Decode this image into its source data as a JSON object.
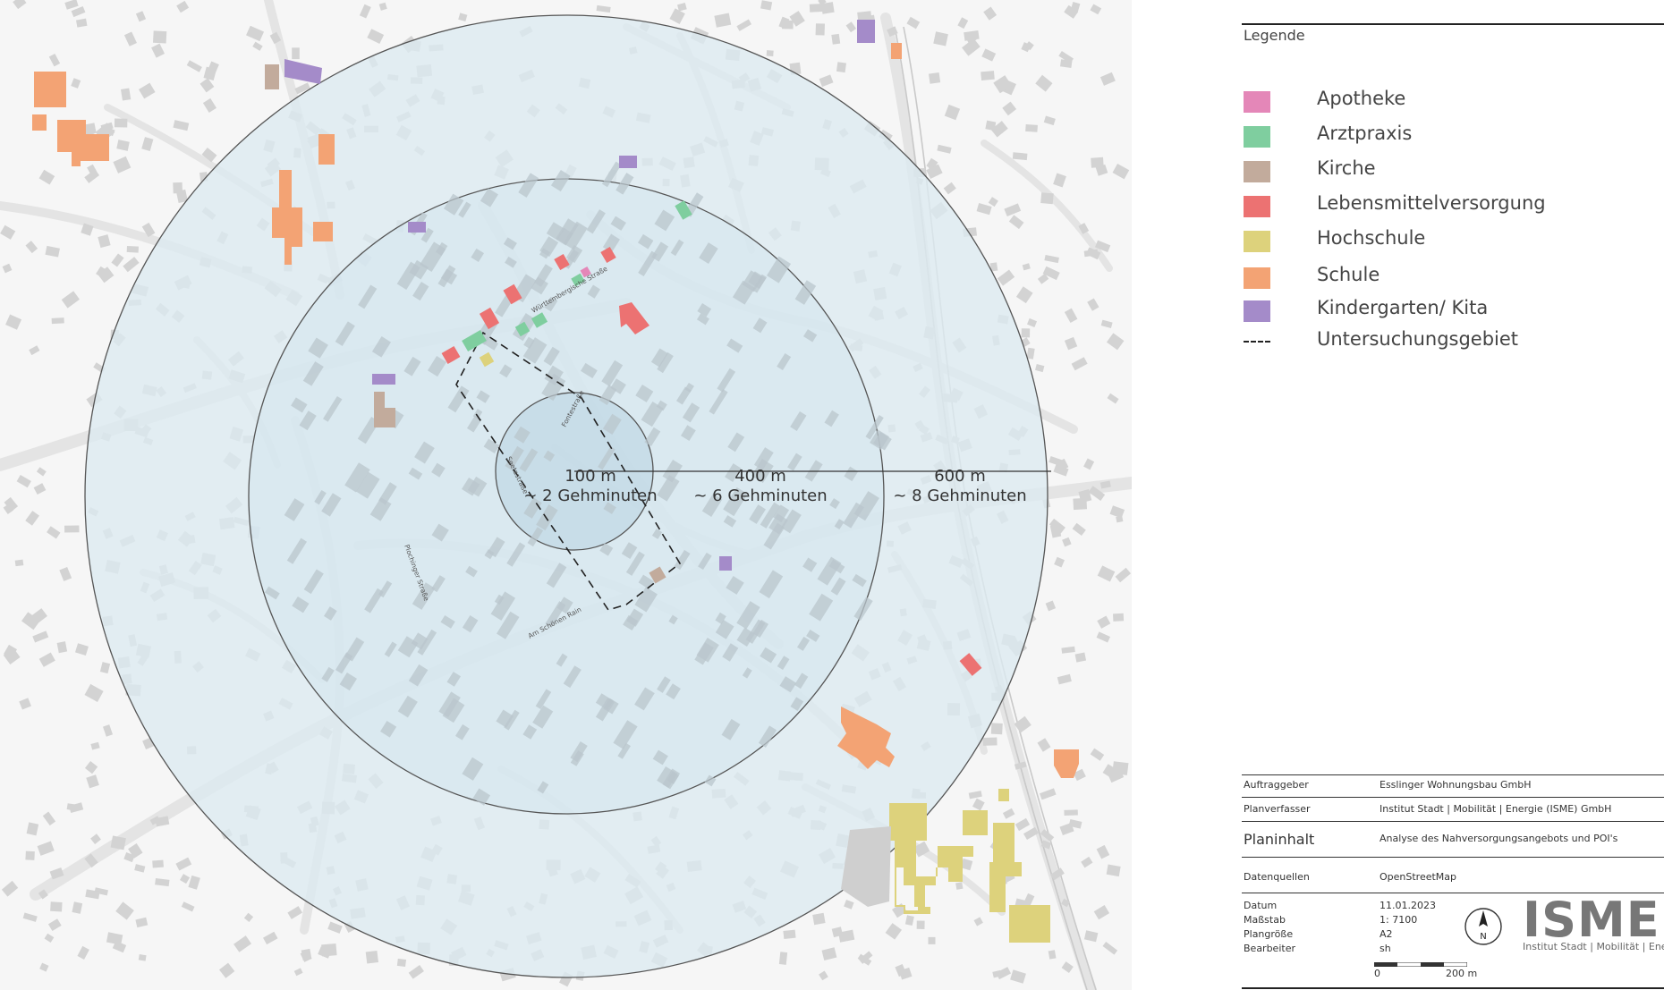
{
  "map": {
    "rings": [
      {
        "radius_m": "100 m",
        "walk": "~ 2 Gehminuten"
      },
      {
        "radius_m": "400 m",
        "walk": "~ 6 Gehminuten"
      },
      {
        "radius_m": "600 m",
        "walk": "~ 8 Gehminuten"
      }
    ],
    "street_labels": [
      "Württembergische Straße",
      "Am Schönen Rain",
      "Plochinger Straße",
      "Fontestraße",
      "Seetastraße"
    ]
  },
  "legend": {
    "title": "Legende",
    "items": [
      {
        "label": "Apotheke",
        "color": "#e487b8"
      },
      {
        "label": "Arztpraxis",
        "color": "#7fce9f"
      },
      {
        "label": "Kirche",
        "color": "#c2ab9c"
      },
      {
        "label": "Lebensmittelversorgung",
        "color": "#ec7272"
      },
      {
        "label": "Hochschule",
        "color": "#ddd27c"
      },
      {
        "label": "Schule",
        "color": "#f3a374"
      },
      {
        "label": "Kindergarten/ Kita",
        "color": "#a48bc9"
      }
    ],
    "study_area": "Untersuchungsgebiet"
  },
  "titleblock": {
    "auftraggeber_key": "Auftraggeber",
    "auftraggeber_val": "Esslinger Wohnungsbau GmbH",
    "planverfasser_key": "Planverfasser",
    "planverfasser_val": "Institut Stadt | Mobilität | Energie (ISME) GmbH",
    "planinhalt_key": "Planinhalt",
    "planinhalt_val": "Analyse des Nahversorgungsangebots und POI's",
    "datenquellen_key": "Datenquellen",
    "datenquellen_val": "OpenStreetMap",
    "datum_key": "Datum",
    "datum_val": "11.01.2023",
    "massstab_key": "Maßstab",
    "massstab_val": "1: 7100",
    "plangroesse_key": "Plangröße",
    "plangroesse_val": "A2",
    "bearbeiter_key": "Bearbeiter",
    "bearbeiter_val": "sh",
    "scale_start": "0",
    "scale_end": "200 m",
    "north": "N",
    "logo": "ISME",
    "logo_sub": "Institut Stadt | Mobilität | Energie"
  },
  "colors": {
    "ring_fill": "#dcebf1",
    "inner_fill": "#c4dbe6",
    "building": "#d2d2d2",
    "road": "#e6e6e6"
  }
}
